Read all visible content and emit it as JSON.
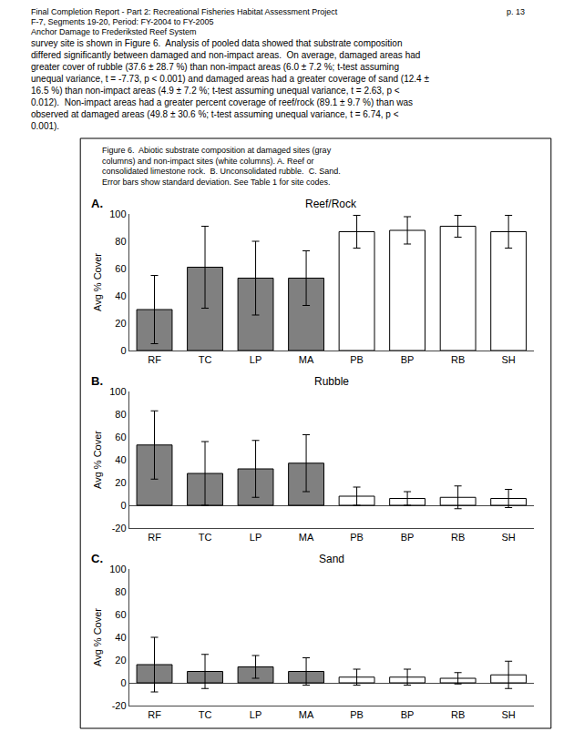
{
  "header": [
    "Final Completion Report - Part 2: Recreational Fisheries Habitat Assessment Project",
    "F-7, Segments 19-20, Period: FY-2004 to FY-2005",
    "Anchor Damage to Frederiksted Reef System"
  ],
  "page_number": "p. 13",
  "body_text": "survey site is shown in Figure 6.  Analysis of pooled data showed that substrate composition\ndiffered significantly between damaged and non-impact areas.  On average, damaged areas had\ngreater cover of rubble (37.6 ± 28.7 %) than non-impact areas (6.0 ± 7.2 %; t-test assuming\nunequal variance, t = -7.73, p < 0.001) and damaged areas had a greater coverage of sand (12.4 ±\n16.5 %) than non-impact areas (4.9 ± 7.2 %; t-test assuming unequal variance, t = 2.63, p <\n0.012).  Non-impact areas had a greater percent coverage of reef/rock (89.1 ± 9.7 %) than was\nobserved at damaged areas (49.8 ± 30.6 %; t-test assuming unequal variance, t = 6.74, p <\n0.001).",
  "caption": "Figure 6.  Abiotic substrate composition at damaged sites (gray\ncolumns) and non-impact sites (white columns). A. Reef or\nconsolidated limestone rock.  B. Unconsolidated rubble.  C. Sand.\nError bars show standard deviation. See Table 1 for site codes.",
  "chart_data": [
    {
      "type": "bar",
      "title": "Reef/Rock",
      "annotations": [
        "A."
      ],
      "categories": [
        "RF",
        "TC",
        "LP",
        "MA",
        "PB",
        "BP",
        "RB",
        "SH"
      ],
      "series": [
        {
          "color": "#808080",
          "values": [
            30,
            61,
            53,
            53,
            null,
            null,
            null,
            null
          ],
          "errors": [
            25,
            30,
            27,
            20,
            null,
            null,
            null,
            null
          ]
        },
        {
          "color": "#ffffff",
          "values": [
            null,
            null,
            null,
            null,
            87,
            88,
            91,
            87
          ],
          "errors": [
            null,
            null,
            null,
            null,
            12,
            10,
            8,
            12
          ]
        }
      ],
      "ylabel": "Avg % Cover",
      "ylim": [
        0,
        100
      ],
      "yticks": [
        0,
        20,
        40,
        60,
        80,
        100
      ],
      "grid": false
    },
    {
      "type": "bar",
      "title": "Rubble",
      "annotations": [
        "B."
      ],
      "categories": [
        "RF",
        "TC",
        "LP",
        "MA",
        "PB",
        "BP",
        "RB",
        "SH"
      ],
      "series": [
        {
          "color": "#808080",
          "values": [
            53,
            28,
            32,
            37,
            null,
            null,
            null,
            null
          ],
          "errors": [
            30,
            28,
            25,
            25,
            null,
            null,
            null,
            null
          ]
        },
        {
          "color": "#ffffff",
          "values": [
            null,
            null,
            null,
            null,
            8,
            6,
            7,
            6
          ],
          "errors": [
            null,
            null,
            null,
            null,
            8,
            6,
            10,
            8
          ]
        }
      ],
      "ylabel": "Avg % Cover",
      "ylim": [
        -20,
        100
      ],
      "yticks": [
        -20,
        0,
        20,
        40,
        60,
        80,
        100
      ],
      "grid": false
    },
    {
      "type": "bar",
      "title": "Sand",
      "annotations": [
        "C."
      ],
      "categories": [
        "RF",
        "TC",
        "LP",
        "MA",
        "PB",
        "BP",
        "RB",
        "SH"
      ],
      "series": [
        {
          "color": "#808080",
          "values": [
            16,
            10,
            14,
            10,
            null,
            null,
            null,
            null
          ],
          "errors": [
            24,
            15,
            10,
            12,
            null,
            null,
            null,
            null
          ]
        },
        {
          "color": "#ffffff",
          "values": [
            null,
            null,
            null,
            null,
            5,
            5,
            4,
            7
          ],
          "errors": [
            null,
            null,
            null,
            null,
            7,
            7,
            5,
            12
          ]
        }
      ],
      "ylabel": "Avg % Cover",
      "ylim": [
        -20,
        100
      ],
      "yticks": [
        -20,
        0,
        20,
        40,
        60,
        80,
        100
      ],
      "grid": false
    }
  ]
}
